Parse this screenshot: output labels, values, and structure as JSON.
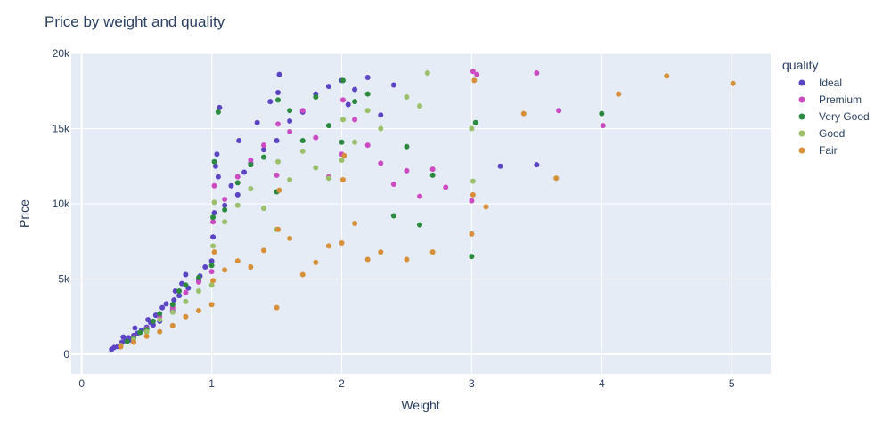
{
  "chart_data": {
    "type": "scatter",
    "title": "Price by weight and quality",
    "xlabel": "Weight",
    "ylabel": "Price",
    "xlim": [
      -0.08,
      5.3
    ],
    "ylim": [
      -1300,
      20000
    ],
    "x_ticks": [
      {
        "value": 0,
        "label": "0"
      },
      {
        "value": 1,
        "label": "1"
      },
      {
        "value": 2,
        "label": "2"
      },
      {
        "value": 3,
        "label": "3"
      },
      {
        "value": 4,
        "label": "4"
      },
      {
        "value": 5,
        "label": "5"
      }
    ],
    "y_ticks": [
      {
        "value": 0,
        "label": "0"
      },
      {
        "value": 5000,
        "label": "5k"
      },
      {
        "value": 10000,
        "label": "10k"
      },
      {
        "value": 15000,
        "label": "15k"
      },
      {
        "value": 20000,
        "label": "20k"
      }
    ],
    "grid": true,
    "legend_title": "quality",
    "legend_position": "top-right",
    "colors": {
      "plot_background": "#e5ecf6",
      "grid": "#ffffff",
      "text": "#2a3f5f"
    },
    "series": [
      {
        "name": "Ideal",
        "color": "#5b45c4",
        "points": [
          [
            0.23,
            330
          ],
          [
            0.25,
            450
          ],
          [
            0.28,
            520
          ],
          [
            0.3,
            640
          ],
          [
            0.31,
            800
          ],
          [
            0.32,
            1150
          ],
          [
            0.34,
            900
          ],
          [
            0.36,
            1100
          ],
          [
            0.38,
            950
          ],
          [
            0.4,
            1250
          ],
          [
            0.41,
            1750
          ],
          [
            0.43,
            1400
          ],
          [
            0.46,
            1600
          ],
          [
            0.5,
            1800
          ],
          [
            0.51,
            2300
          ],
          [
            0.53,
            2100
          ],
          [
            0.55,
            1950
          ],
          [
            0.57,
            2600
          ],
          [
            0.6,
            2200
          ],
          [
            0.62,
            3100
          ],
          [
            0.65,
            3350
          ],
          [
            0.7,
            2900
          ],
          [
            0.71,
            3600
          ],
          [
            0.72,
            4200
          ],
          [
            0.75,
            3900
          ],
          [
            0.77,
            4700
          ],
          [
            0.8,
            5300
          ],
          [
            0.82,
            4400
          ],
          [
            0.9,
            4900
          ],
          [
            0.91,
            5200
          ],
          [
            0.95,
            5800
          ],
          [
            1.0,
            6200
          ],
          [
            1.01,
            7800
          ],
          [
            1.02,
            9400
          ],
          [
            1.03,
            12500
          ],
          [
            1.04,
            13300
          ],
          [
            1.05,
            11800
          ],
          [
            1.06,
            16400
          ],
          [
            1.1,
            9900
          ],
          [
            1.15,
            11200
          ],
          [
            1.2,
            10600
          ],
          [
            1.21,
            14200
          ],
          [
            1.25,
            12100
          ],
          [
            1.3,
            12700
          ],
          [
            1.35,
            15400
          ],
          [
            1.4,
            13600
          ],
          [
            1.45,
            16800
          ],
          [
            1.5,
            14200
          ],
          [
            1.51,
            17400
          ],
          [
            1.52,
            18600
          ],
          [
            1.6,
            15500
          ],
          [
            1.7,
            16100
          ],
          [
            1.8,
            17300
          ],
          [
            1.9,
            17800
          ],
          [
            2.0,
            18200
          ],
          [
            2.05,
            16600
          ],
          [
            2.1,
            17600
          ],
          [
            2.2,
            18400
          ],
          [
            2.3,
            15900
          ],
          [
            2.4,
            17900
          ],
          [
            3.22,
            12500
          ],
          [
            3.5,
            12600
          ]
        ]
      },
      {
        "name": "Premium",
        "color": "#cc4bc2",
        "points": [
          [
            0.3,
            600
          ],
          [
            0.4,
            1100
          ],
          [
            0.5,
            1700
          ],
          [
            0.6,
            2500
          ],
          [
            0.7,
            3100
          ],
          [
            0.8,
            4100
          ],
          [
            0.9,
            4800
          ],
          [
            1.0,
            5500
          ],
          [
            1.01,
            8800
          ],
          [
            1.02,
            11200
          ],
          [
            1.1,
            10300
          ],
          [
            1.2,
            11800
          ],
          [
            1.3,
            12900
          ],
          [
            1.4,
            13900
          ],
          [
            1.5,
            11900
          ],
          [
            1.51,
            15300
          ],
          [
            1.6,
            14800
          ],
          [
            1.7,
            16200
          ],
          [
            1.8,
            14400
          ],
          [
            1.9,
            11800
          ],
          [
            2.0,
            13300
          ],
          [
            2.01,
            16900
          ],
          [
            2.1,
            15600
          ],
          [
            2.2,
            13900
          ],
          [
            2.3,
            12700
          ],
          [
            2.4,
            11300
          ],
          [
            2.5,
            12200
          ],
          [
            2.6,
            10500
          ],
          [
            2.7,
            12300
          ],
          [
            2.8,
            11100
          ],
          [
            3.0,
            10200
          ],
          [
            3.01,
            18800
          ],
          [
            3.04,
            18600
          ],
          [
            3.5,
            18700
          ],
          [
            3.67,
            16200
          ],
          [
            4.01,
            15200
          ]
        ]
      },
      {
        "name": "Very Good",
        "color": "#2b8a3e",
        "points": [
          [
            0.3,
            550
          ],
          [
            0.35,
            850
          ],
          [
            0.4,
            1050
          ],
          [
            0.45,
            1450
          ],
          [
            0.5,
            1650
          ],
          [
            0.55,
            2200
          ],
          [
            0.6,
            2700
          ],
          [
            0.7,
            3300
          ],
          [
            0.75,
            4200
          ],
          [
            0.8,
            4600
          ],
          [
            0.9,
            5100
          ],
          [
            1.0,
            5900
          ],
          [
            1.01,
            9100
          ],
          [
            1.02,
            12800
          ],
          [
            1.05,
            16100
          ],
          [
            1.1,
            9600
          ],
          [
            1.2,
            11400
          ],
          [
            1.3,
            12600
          ],
          [
            1.4,
            13100
          ],
          [
            1.5,
            10800
          ],
          [
            1.51,
            16900
          ],
          [
            1.6,
            16200
          ],
          [
            1.7,
            14200
          ],
          [
            1.8,
            17100
          ],
          [
            1.9,
            15200
          ],
          [
            2.0,
            14100
          ],
          [
            2.01,
            18200
          ],
          [
            2.1,
            16800
          ],
          [
            2.2,
            17300
          ],
          [
            2.4,
            9200
          ],
          [
            2.5,
            13800
          ],
          [
            2.6,
            8600
          ],
          [
            2.7,
            11900
          ],
          [
            3.0,
            6500
          ],
          [
            3.03,
            15400
          ],
          [
            4.0,
            16000
          ]
        ]
      },
      {
        "name": "Good",
        "color": "#9bbf6b",
        "points": [
          [
            0.3,
            580
          ],
          [
            0.4,
            980
          ],
          [
            0.5,
            1500
          ],
          [
            0.6,
            2300
          ],
          [
            0.7,
            2800
          ],
          [
            0.8,
            3500
          ],
          [
            0.9,
            4200
          ],
          [
            1.0,
            4600
          ],
          [
            1.01,
            7200
          ],
          [
            1.02,
            10100
          ],
          [
            1.1,
            8800
          ],
          [
            1.2,
            9900
          ],
          [
            1.3,
            11000
          ],
          [
            1.4,
            9700
          ],
          [
            1.5,
            8300
          ],
          [
            1.51,
            12800
          ],
          [
            1.6,
            11600
          ],
          [
            1.7,
            13500
          ],
          [
            1.8,
            12400
          ],
          [
            1.9,
            11700
          ],
          [
            2.0,
            12900
          ],
          [
            2.01,
            15600
          ],
          [
            2.1,
            14100
          ],
          [
            2.2,
            16200
          ],
          [
            2.3,
            15000
          ],
          [
            2.5,
            17100
          ],
          [
            2.6,
            16500
          ],
          [
            2.66,
            18700
          ],
          [
            3.0,
            15000
          ],
          [
            3.01,
            11500
          ]
        ]
      },
      {
        "name": "Fair",
        "color": "#d78f3a",
        "points": [
          [
            0.3,
            500
          ],
          [
            0.4,
            800
          ],
          [
            0.5,
            1200
          ],
          [
            0.6,
            1500
          ],
          [
            0.7,
            1900
          ],
          [
            0.8,
            2500
          ],
          [
            0.9,
            2900
          ],
          [
            1.0,
            3300
          ],
          [
            1.01,
            4900
          ],
          [
            1.02,
            6800
          ],
          [
            1.1,
            5600
          ],
          [
            1.2,
            6200
          ],
          [
            1.3,
            5800
          ],
          [
            1.4,
            6900
          ],
          [
            1.5,
            3100
          ],
          [
            1.51,
            8300
          ],
          [
            1.52,
            10900
          ],
          [
            1.6,
            7700
          ],
          [
            1.7,
            5300
          ],
          [
            1.8,
            6100
          ],
          [
            1.9,
            7200
          ],
          [
            2.0,
            7400
          ],
          [
            2.01,
            11600
          ],
          [
            2.02,
            13200
          ],
          [
            2.1,
            8700
          ],
          [
            2.2,
            6300
          ],
          [
            2.3,
            6800
          ],
          [
            2.5,
            6300
          ],
          [
            2.7,
            6800
          ],
          [
            3.0,
            8000
          ],
          [
            3.01,
            10600
          ],
          [
            3.02,
            18200
          ],
          [
            3.11,
            9800
          ],
          [
            3.4,
            16000
          ],
          [
            3.65,
            11700
          ],
          [
            4.13,
            17300
          ],
          [
            4.5,
            18500
          ],
          [
            5.01,
            18000
          ]
        ]
      }
    ]
  }
}
